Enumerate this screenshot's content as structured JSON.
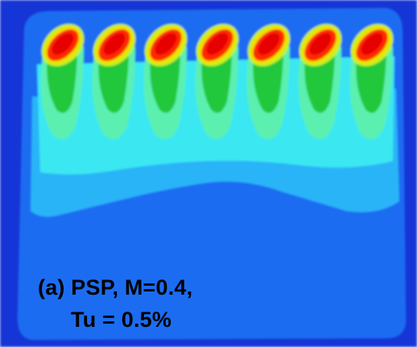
{
  "image": {
    "subject": "psp-contour-map",
    "colormap": [
      "#1436d6",
      "#1e6cf2",
      "#2ab4f8",
      "#3ae8f2",
      "#5cf0b0",
      "#22c83a",
      "#c8f020",
      "#f0e000",
      "#ff2a00",
      "#e60000"
    ],
    "hole_count": 7
  },
  "caption": {
    "line1": "(a) PSP, M=0.4,",
    "line2": "Tu = 0.5%"
  }
}
